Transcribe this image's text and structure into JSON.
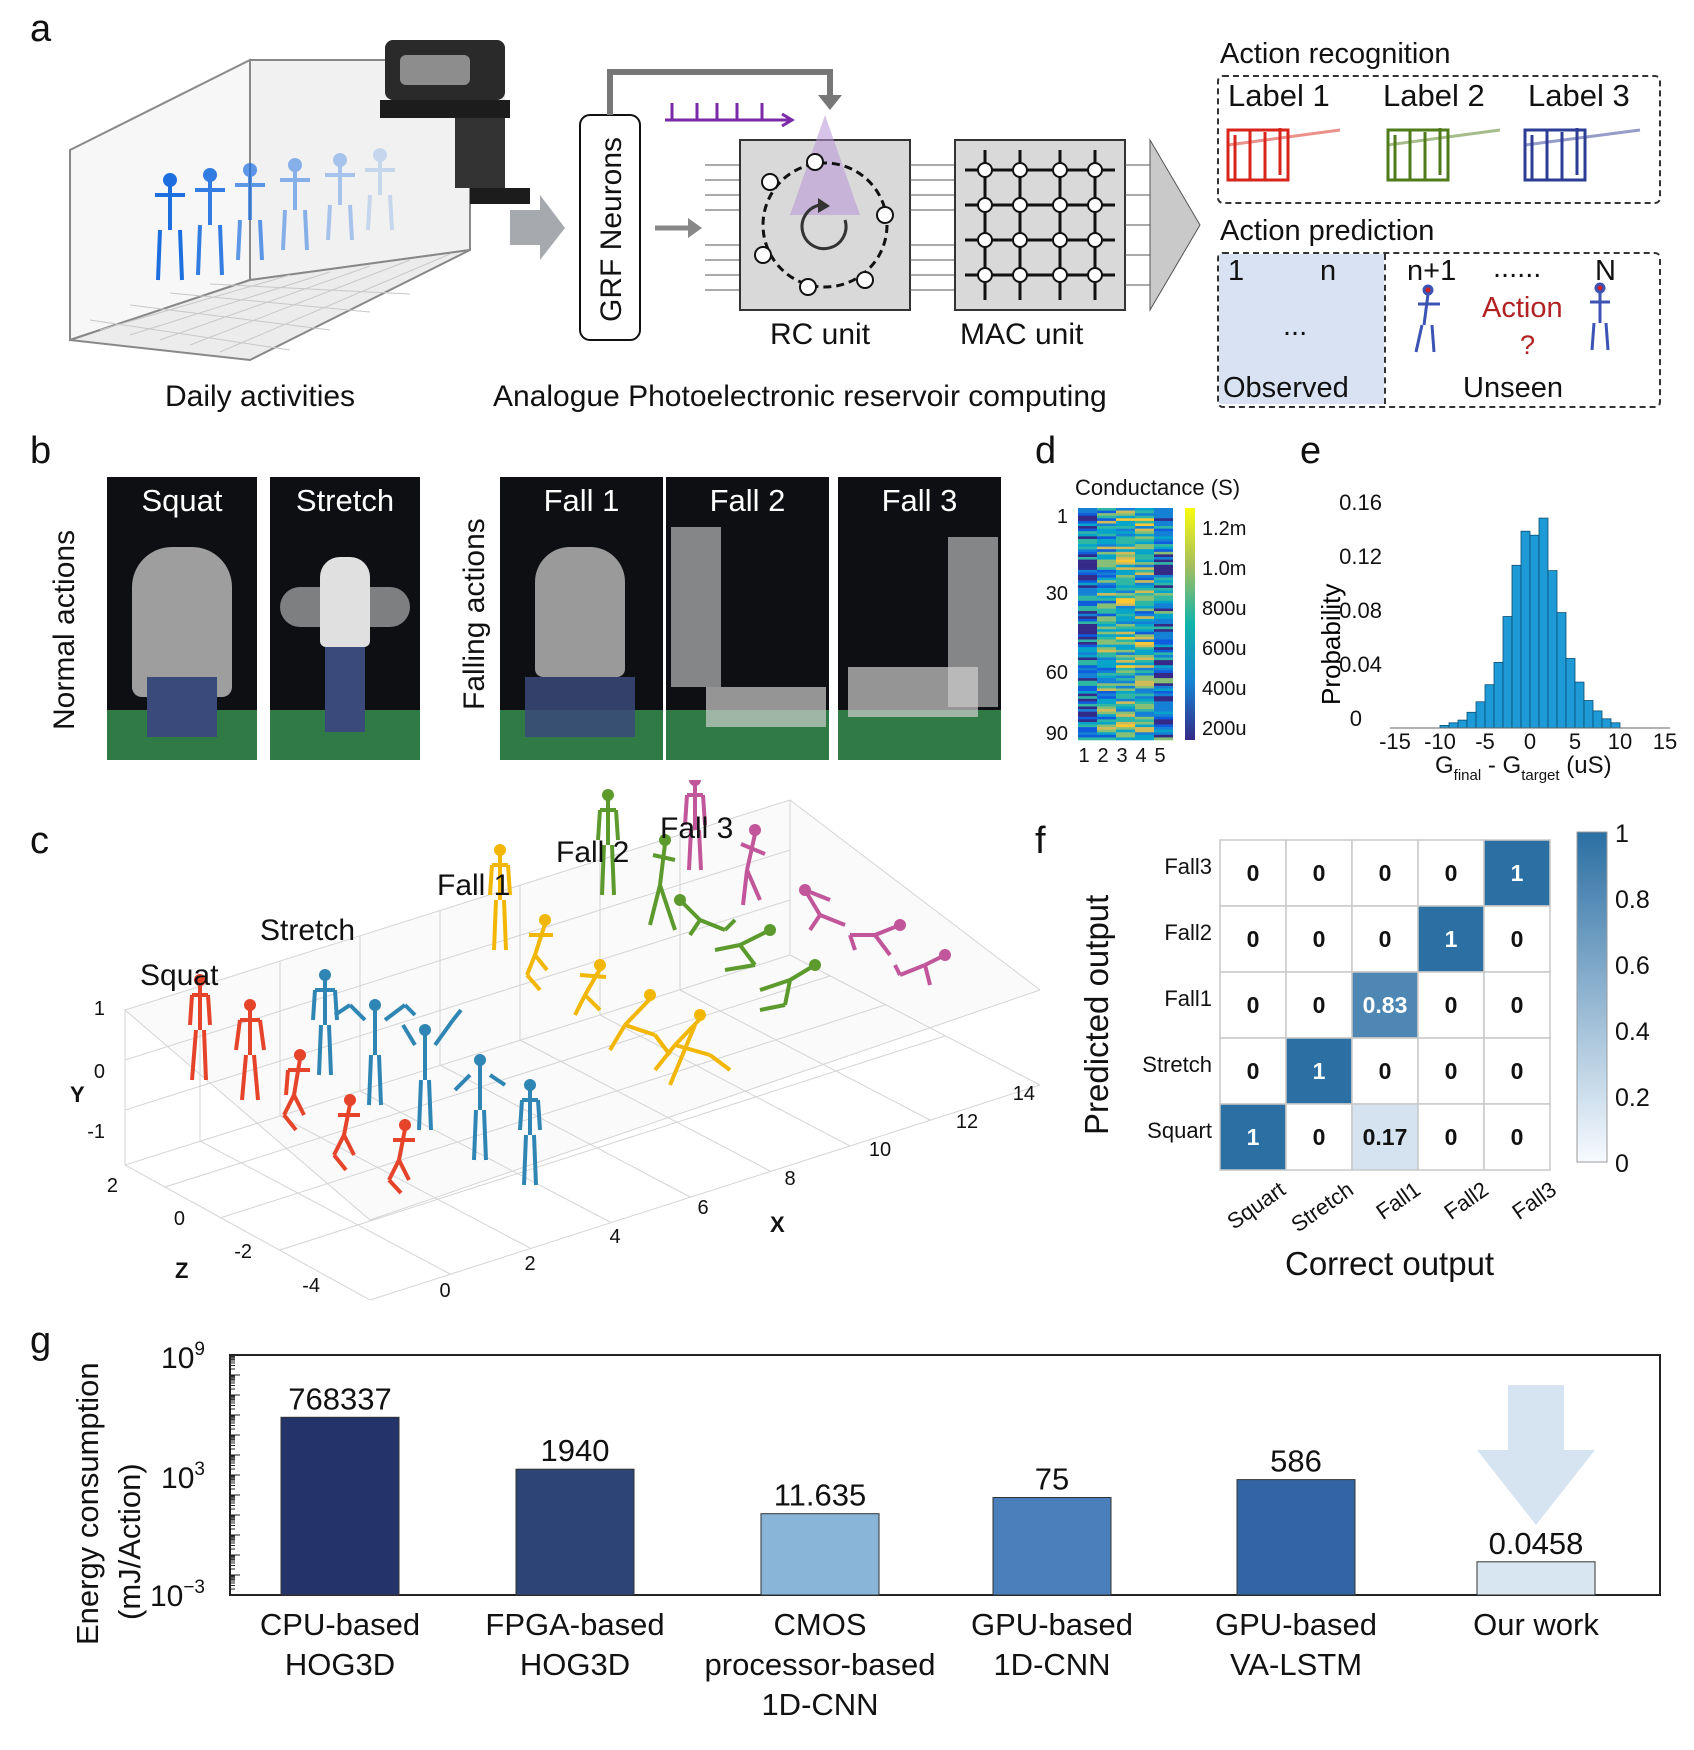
{
  "panels": {
    "a": "a",
    "b": "b",
    "c": "c",
    "d": "d",
    "e": "e",
    "f": "f",
    "g": "g"
  },
  "panel_a": {
    "daily_activities": "Daily activities",
    "grf_neurons": "GRF Neurons",
    "rc_unit": "RC unit",
    "mac_unit": "MAC unit",
    "analogue_label": "Analogue Photoelectronic reservoir computing",
    "action_recognition": "Action recognition",
    "labels": [
      "Label 1",
      "Label 2",
      "Label 3"
    ],
    "label_colors": [
      "#8a8a8a",
      "#8a8a8a",
      "#b22222"
    ],
    "action_prediction": "Action prediction",
    "pred_index_1": "1",
    "pred_index_n": "n",
    "pred_index_n1": "n+1",
    "pred_dots": "......",
    "pred_index_N": "N",
    "pred_ellipsis": "...",
    "action_q": "Action",
    "q_mark": "?",
    "observed": "Observed",
    "unseen": "Unseen"
  },
  "panel_b": {
    "normal_actions": "Normal actions",
    "falling_actions": "Falling actions",
    "photos": [
      "Squat",
      "Stretch",
      "Fall 1",
      "Fall 2",
      "Fall 3"
    ]
  },
  "panel_c": {
    "groups": [
      "Squat",
      "Stretch",
      "Fall 1",
      "Fall 2",
      "Fall 3"
    ],
    "group_colors": [
      "#e5442b",
      "#2f86b4",
      "#f2b705",
      "#5c9a2e",
      "#c2569b"
    ],
    "axis_x": "X",
    "axis_y": "Y",
    "axis_z": "Z",
    "x_ticks": [
      "0",
      "2",
      "4",
      "6",
      "8",
      "10",
      "12",
      "14"
    ],
    "y_ticks": [
      "1",
      "0",
      "-1"
    ],
    "z_ticks": [
      "2",
      "0",
      "-2",
      "-4"
    ]
  },
  "chart_data": [
    {
      "type": "heatmap",
      "title": "Conductance (S)",
      "rows": 90,
      "cols": 5,
      "row_ticks": [
        "1",
        "30",
        "60",
        "90"
      ],
      "col_ticks": [
        "1",
        "2",
        "3",
        "4",
        "5"
      ],
      "colorbar_ticks": [
        "1.2m",
        "1.0m",
        "800u",
        "600u",
        "400u",
        "200u"
      ]
    },
    {
      "type": "bar",
      "xlabel": "G_final - G_target (uS)",
      "xlabel_main": "G",
      "xlabel_sub1": "final",
      "xlabel_mid": " - G",
      "xlabel_sub2": "target",
      "xlabel_tail": " (uS)",
      "ylabel": "Probability",
      "x_ticks": [
        "-15",
        "-10",
        "-5",
        "0",
        "5",
        "10",
        "15"
      ],
      "y_ticks": [
        "0.16",
        "0.12",
        "0.08",
        "0.04",
        "0"
      ],
      "xlim": [
        -15,
        15
      ],
      "ylim": [
        0,
        0.17
      ],
      "bins": [
        -9.5,
        -8.5,
        -7.5,
        -6.5,
        -5.5,
        -4.5,
        -3.5,
        -2.5,
        -1.5,
        -0.5,
        0.5,
        1.5,
        2.5,
        3.5,
        4.5,
        5.5,
        6.5,
        7.5,
        8.5,
        9.5
      ],
      "values": [
        0.002,
        0.004,
        0.006,
        0.012,
        0.02,
        0.033,
        0.05,
        0.085,
        0.124,
        0.15,
        0.147,
        0.16,
        0.12,
        0.088,
        0.053,
        0.035,
        0.021,
        0.013,
        0.007,
        0.004
      ],
      "color": "#1e9ad6"
    },
    {
      "type": "heatmap",
      "xlabel": "Correct output",
      "ylabel": "Predicted output",
      "x_categories": [
        "Squart",
        "Stretch",
        "Fall1",
        "Fall2",
        "Fall3"
      ],
      "y_categories": [
        "Fall3",
        "Fall2",
        "Fall1",
        "Stretch",
        "Squart"
      ],
      "values": [
        [
          "0",
          "0",
          "0",
          "0",
          "1"
        ],
        [
          "0",
          "0",
          "0",
          "1",
          "0"
        ],
        [
          "0",
          "0",
          "0.83",
          "0",
          "0"
        ],
        [
          "0",
          "1",
          "0",
          "0",
          "0"
        ],
        [
          "1",
          "0",
          "0.17",
          "0",
          "0"
        ]
      ],
      "colorbar_ticks": [
        "1",
        "0.8",
        "0.6",
        "0.4",
        "0.2",
        "0"
      ]
    },
    {
      "type": "bar",
      "ylabel_1": "Energy consumption",
      "ylabel_2": "(mJ/Action)",
      "y_scale": "log",
      "ylim": [
        0.001,
        1000000000
      ],
      "y_ticks": [
        {
          "base": "10",
          "exp": "9"
        },
        {
          "base": "10",
          "exp": "3"
        },
        {
          "base": "10",
          "exp": "−3"
        }
      ],
      "categories": [
        [
          "CPU-based",
          "HOG3D"
        ],
        [
          "FPGA-based",
          "HOG3D"
        ],
        [
          "CMOS",
          "processor-based",
          "1D-CNN"
        ],
        [
          "GPU-based",
          "1D-CNN"
        ],
        [
          "GPU-based",
          "VA-LSTM"
        ],
        [
          "Our work"
        ]
      ],
      "values": [
        768337,
        1940,
        11.635,
        75,
        586,
        0.0458
      ],
      "value_labels": [
        "768337",
        "1940",
        "11.635",
        "75",
        "586",
        "0.0458"
      ],
      "colors": [
        "#24346b",
        "#2c4476",
        "#89b6d8",
        "#4a7fbb",
        "#3364a4",
        "#d8e6f2"
      ]
    }
  ]
}
